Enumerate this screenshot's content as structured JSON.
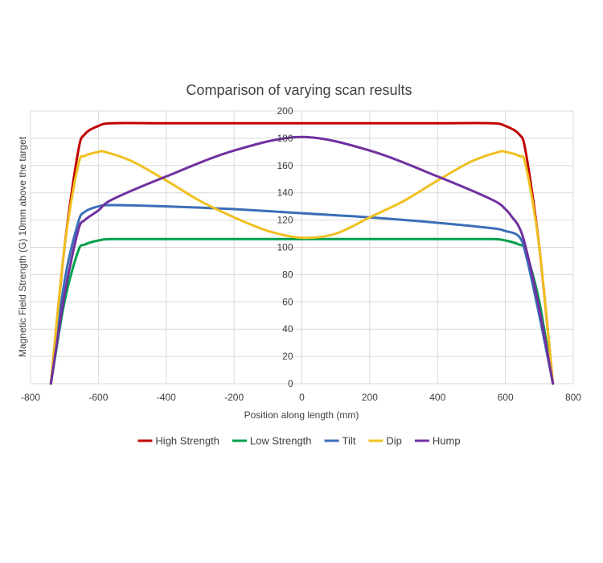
{
  "chart_data": {
    "type": "line",
    "title": "Comparison of varying scan results",
    "xlabel": "Position along length (mm)",
    "ylabel": "Magnetic Field Strength (G) 10mm above the target",
    "xlim": [
      -800,
      800
    ],
    "ylim": [
      0,
      200
    ],
    "x_ticks": [
      -800,
      -600,
      -400,
      -200,
      0,
      200,
      400,
      600,
      800
    ],
    "y_ticks": [
      0,
      20,
      40,
      60,
      80,
      100,
      120,
      140,
      160,
      180,
      200
    ],
    "grid": true,
    "legend_position": "bottom",
    "series": [
      {
        "name": "High Strength",
        "color": "#c00000",
        "x": [
          -740,
          -700,
          -660,
          -640,
          -600,
          -560,
          -400,
          -200,
          0,
          200,
          400,
          560,
          600,
          640,
          660,
          700,
          740
        ],
        "y": [
          0,
          100,
          170,
          183,
          189,
          191,
          191,
          191,
          191,
          191,
          191,
          191,
          189,
          183,
          170,
          100,
          0
        ]
      },
      {
        "name": "Low Strength",
        "color": "#00a04b",
        "x": [
          -740,
          -700,
          -660,
          -640,
          -600,
          -560,
          -400,
          -200,
          0,
          200,
          400,
          560,
          600,
          640,
          660,
          700,
          740
        ],
        "y": [
          0,
          60,
          97,
          102,
          105,
          106,
          106,
          106,
          106,
          106,
          106,
          106,
          105,
          102,
          97,
          60,
          0
        ]
      },
      {
        "name": "Tilt",
        "color": "#3a6fb7",
        "x": [
          -740,
          -700,
          -660,
          -640,
          -600,
          -560,
          -400,
          -200,
          0,
          200,
          400,
          560,
          600,
          640,
          660,
          700,
          740
        ],
        "y": [
          0,
          75,
          118,
          126,
          130,
          131,
          130,
          128,
          125,
          122,
          118,
          114,
          112,
          108,
          95,
          50,
          0
        ]
      },
      {
        "name": "Dip",
        "color": "#f0c020",
        "x": [
          -740,
          -700,
          -660,
          -640,
          -600,
          -580,
          -500,
          -400,
          -300,
          -200,
          -100,
          0,
          100,
          200,
          300,
          400,
          500,
          580,
          600,
          640,
          660,
          700,
          740
        ],
        "y": [
          0,
          100,
          160,
          167,
          170,
          170,
          163,
          149,
          134,
          122,
          112,
          107,
          110,
          122,
          134,
          149,
          163,
          170,
          170,
          167,
          160,
          100,
          0
        ]
      },
      {
        "name": "Hump",
        "color": "#7030a0",
        "x": [
          -740,
          -700,
          -660,
          -640,
          -600,
          -560,
          -400,
          -200,
          0,
          200,
          400,
          560,
          600,
          620,
          640,
          660,
          700,
          740
        ],
        "y": [
          0,
          65,
          112,
          120,
          127,
          135,
          152,
          171,
          181,
          171,
          152,
          135,
          128,
          122,
          115,
          100,
          55,
          0
        ]
      }
    ]
  }
}
